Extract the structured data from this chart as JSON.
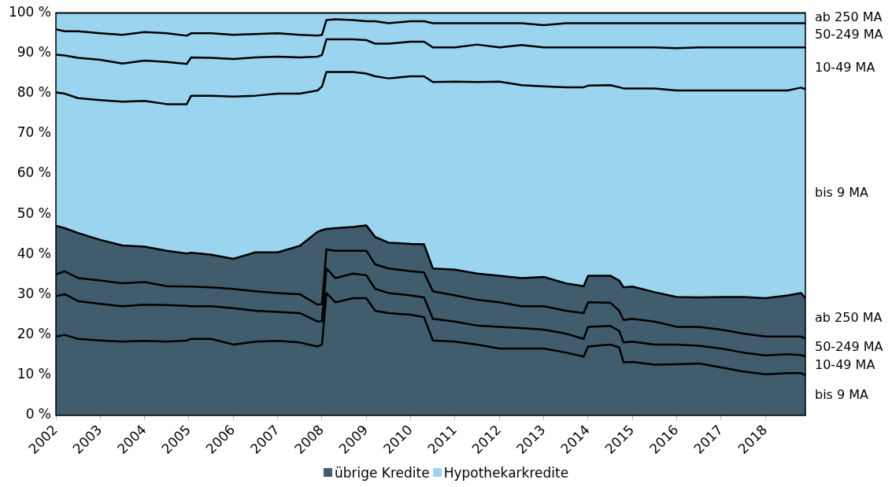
{
  "chart_data": {
    "type": "area",
    "stacked": true,
    "x": [
      2002,
      2002.2,
      2002.5,
      2003,
      2003.5,
      2004,
      2004.5,
      2004.95,
      2005.05,
      2005.5,
      2006,
      2006.5,
      2007,
      2007.5,
      2007.9,
      2008.0,
      2008.1,
      2008.3,
      2008.7,
      2009,
      2009.2,
      2009.5,
      2010,
      2010.3,
      2010.5,
      2011,
      2011.5,
      2012,
      2012.5,
      2013,
      2013.5,
      2013.9,
      2014.0,
      2014.5,
      2014.7,
      2014.8,
      2015,
      2015.5,
      2016,
      2016.5,
      2017,
      2017.5,
      2018,
      2018.5,
      2018.8,
      2018.9
    ],
    "xlim": [
      2002,
      2018.9
    ],
    "xticks": [
      2002,
      2003,
      2004,
      2005,
      2006,
      2007,
      2008,
      2009,
      2010,
      2011,
      2012,
      2013,
      2014,
      2015,
      2016,
      2017,
      2018
    ],
    "ylim": [
      0,
      100
    ],
    "yticks": [
      {
        "value": 0,
        "label": "0 %"
      },
      {
        "value": 10,
        "label": "10 %"
      },
      {
        "value": 20,
        "label": "20 %"
      },
      {
        "value": 30,
        "label": "30 %"
      },
      {
        "value": 40,
        "label": "40 %"
      },
      {
        "value": 50,
        "label": "50 %"
      },
      {
        "value": 60,
        "label": "60 %"
      },
      {
        "value": 70,
        "label": "70 %"
      },
      {
        "value": 80,
        "label": "80 %"
      },
      {
        "value": 90,
        "label": "90 %"
      },
      {
        "value": 100,
        "label": "100 %"
      }
    ],
    "series": [
      {
        "name": "bis 9 MA",
        "color": "#415c6c",
        "values": [
          19.6,
          20.0,
          19.0,
          18.6,
          18.3,
          18.5,
          18.3,
          18.6,
          19.0,
          19.0,
          17.6,
          18.3,
          18.5,
          18.1,
          17.1,
          17.6,
          30.4,
          28.1,
          29.1,
          29.1,
          26.0,
          25.4,
          25.0,
          24.4,
          18.6,
          18.3,
          17.6,
          16.6,
          16.6,
          16.6,
          15.6,
          14.6,
          17.1,
          17.6,
          16.9,
          13.2,
          13.3,
          12.6,
          12.7,
          12.9,
          11.9,
          10.9,
          10.2,
          10.5,
          10.5,
          10.0
        ]
      },
      {
        "name": "10-49 MA",
        "color": "#415c6c",
        "values": [
          10.0,
          10.1,
          9.4,
          9.1,
          8.8,
          9.0,
          9.1,
          8.6,
          8.1,
          8.1,
          9.0,
          7.7,
          7.2,
          7.3,
          6.2,
          5.8,
          6.1,
          6.0,
          6.1,
          5.7,
          5.4,
          5.0,
          4.8,
          4.9,
          5.4,
          5.0,
          4.7,
          5.4,
          5.1,
          4.7,
          4.7,
          4.4,
          4.9,
          4.6,
          4.1,
          4.9,
          5.0,
          5.0,
          4.9,
          4.4,
          4.7,
          4.7,
          4.7,
          4.7,
          4.5,
          4.6
        ]
      },
      {
        "name": "50-249 MA",
        "color": "#415c6c",
        "values": [
          5.4,
          5.7,
          5.7,
          5.8,
          5.7,
          5.6,
          4.7,
          4.8,
          4.9,
          4.7,
          4.8,
          4.8,
          4.7,
          4.7,
          4.2,
          4.3,
          4.7,
          6.8,
          5.7,
          6.1,
          6.1,
          6.1,
          6.0,
          6.2,
          6.8,
          6.5,
          6.4,
          6.1,
          5.4,
          5.8,
          5.7,
          6.4,
          6.1,
          5.8,
          5.0,
          5.6,
          5.7,
          5.7,
          4.4,
          4.7,
          4.7,
          4.7,
          4.7,
          4.4,
          4.6,
          4.4
        ]
      },
      {
        "name": "ab 250 MA",
        "color": "#415c6c",
        "values": [
          12.1,
          10.7,
          11.2,
          10.1,
          9.4,
          8.8,
          8.8,
          8.2,
          8.4,
          8.1,
          7.5,
          9.7,
          10.1,
          12.0,
          18.1,
          18.3,
          5.1,
          5.6,
          5.9,
          6.3,
          6.8,
          6.4,
          6.8,
          7.0,
          5.7,
          6.4,
          6.5,
          6.6,
          7.0,
          7.3,
          6.8,
          6.7,
          6.6,
          6.7,
          7.5,
          8.1,
          8.0,
          7.3,
          7.4,
          7.3,
          8.1,
          9.1,
          9.5,
          10.2,
          10.8,
          10.1
        ]
      },
      {
        "name": "bis 9 MA",
        "color": "#9bd4ef",
        "values": [
          33.1,
          33.4,
          33.5,
          34.7,
          35.7,
          36.2,
          36.4,
          37.1,
          39.0,
          39.5,
          40.3,
          38.9,
          39.4,
          37.8,
          35.1,
          35.7,
          39.0,
          38.8,
          38.5,
          37.7,
          39.9,
          40.8,
          41.6,
          41.7,
          46.3,
          46.7,
          47.6,
          48.2,
          47.9,
          47.3,
          48.7,
          49.4,
          47.2,
          47.3,
          48.0,
          49.4,
          49.2,
          50.6,
          51.3,
          51.4,
          51.3,
          51.3,
          51.6,
          50.9,
          51.0,
          51.9
        ]
      },
      {
        "name": "10-49 MA",
        "color": "#9bd4ef",
        "values": [
          9.4,
          9.5,
          10.0,
          10.0,
          9.5,
          10.0,
          10.5,
          10.0,
          9.5,
          9.4,
          9.3,
          9.5,
          9.2,
          9.0,
          8.4,
          7.8,
          8.1,
          8.1,
          8.1,
          8.3,
          8.1,
          8.6,
          8.6,
          8.6,
          8.6,
          8.5,
          9.3,
          8.5,
          10.0,
          9.7,
          9.9,
          9.9,
          9.5,
          9.4,
          9.9,
          10.2,
          10.2,
          10.2,
          10.5,
          10.7,
          10.7,
          10.7,
          10.7,
          10.7,
          10.0,
          10.4
        ]
      },
      {
        "name": "50-249 MA",
        "color": "#9bd4ef",
        "values": [
          6.3,
          6.0,
          6.6,
          6.6,
          7.1,
          7.1,
          7.1,
          7.0,
          6.0,
          6.1,
          6.0,
          5.8,
          5.8,
          5.6,
          5.2,
          5.0,
          4.8,
          5.0,
          4.8,
          4.7,
          5.6,
          5.1,
          5.1,
          5.1,
          6.0,
          6.0,
          5.3,
          6.0,
          5.4,
          5.5,
          6.0,
          6.0,
          6.0,
          6.0,
          6.0,
          6.0,
          6.0,
          6.0,
          6.2,
          6.0,
          6.0,
          6.0,
          6.0,
          6.0,
          6.0,
          6.0
        ]
      },
      {
        "name": "ab 250 MA",
        "color": "#9bd4ef",
        "values": [
          4.1,
          4.6,
          4.6,
          5.1,
          5.5,
          4.8,
          5.1,
          5.7,
          5.1,
          5.1,
          5.5,
          5.3,
          5.1,
          5.5,
          5.7,
          5.5,
          1.8,
          1.6,
          1.8,
          2.1,
          2.1,
          2.6,
          2.1,
          2.1,
          2.6,
          2.6,
          2.6,
          2.6,
          2.6,
          3.1,
          2.6,
          2.6,
          2.6,
          2.6,
          2.6,
          2.6,
          2.6,
          2.6,
          2.6,
          2.6,
          2.6,
          2.6,
          2.6,
          2.6,
          2.6,
          2.6
        ]
      }
    ],
    "annotations": [
      "übrige Kredite",
      "Hypothekarkredite"
    ]
  }
}
